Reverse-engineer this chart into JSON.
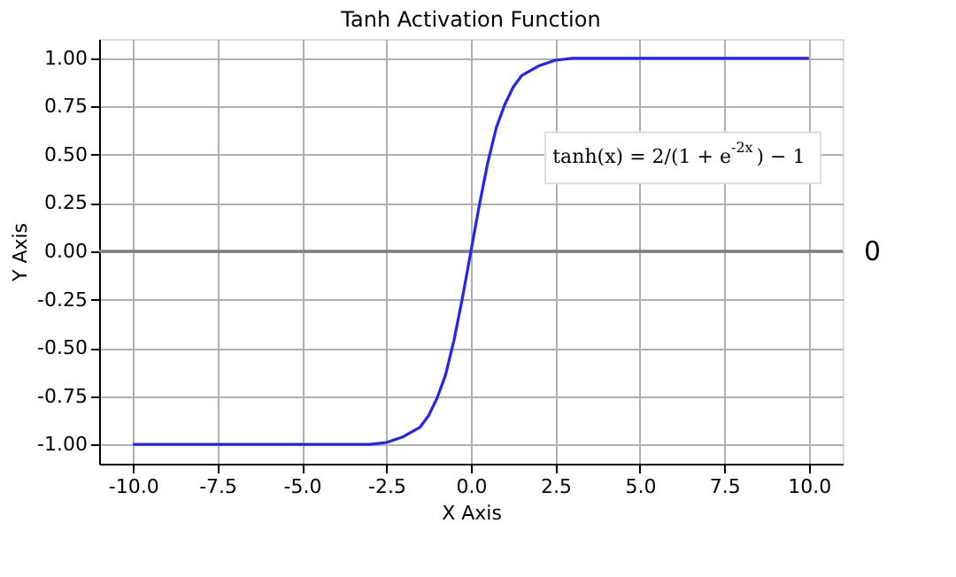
{
  "chart_data": {
    "type": "line",
    "title": "Tanh Activation Function",
    "xlabel": "X Axis",
    "ylabel": "Y Axis",
    "x": [
      -10,
      -6,
      -4,
      -3,
      -2.5,
      -2,
      -1.5,
      -1.25,
      -1,
      -0.75,
      -0.5,
      -0.25,
      0,
      0.25,
      0.5,
      0.75,
      1,
      1.25,
      1.5,
      2,
      2.5,
      3,
      4,
      6,
      10
    ],
    "series": [
      {
        "color": "#2424f0",
        "values": [
          -1.0,
          -1.0,
          -1.0,
          -1.0,
          -0.99,
          -0.96,
          -0.91,
          -0.85,
          -0.76,
          -0.64,
          -0.46,
          -0.24,
          0.0,
          0.24,
          0.46,
          0.64,
          0.76,
          0.85,
          0.91,
          0.96,
          0.99,
          1.0,
          1.0,
          1.0,
          1.0
        ]
      }
    ],
    "xlim": [
      -11,
      11
    ],
    "ylim": [
      -1.1,
      1.1
    ],
    "xticks": [
      {
        "value": -10,
        "label": "-10.0"
      },
      {
        "value": -7.5,
        "label": "-7.5"
      },
      {
        "value": -5,
        "label": "-5.0"
      },
      {
        "value": -2.5,
        "label": "-2.5"
      },
      {
        "value": 0,
        "label": "0.0"
      },
      {
        "value": 2.5,
        "label": "2.5"
      },
      {
        "value": 5,
        "label": "5.0"
      },
      {
        "value": 7.5,
        "label": "7.5"
      },
      {
        "value": 10,
        "label": "10.0"
      }
    ],
    "yticks": [
      {
        "value": -1,
        "label": "-1.00"
      },
      {
        "value": -0.75,
        "label": "-0.75"
      },
      {
        "value": -0.5,
        "label": "-0.50"
      },
      {
        "value": -0.25,
        "label": "-0.25"
      },
      {
        "value": 0,
        "label": "0.00"
      },
      {
        "value": 0.25,
        "label": "0.25"
      },
      {
        "value": 0.5,
        "label": "0.50"
      },
      {
        "value": 0.75,
        "label": "0.75"
      },
      {
        "value": 1,
        "label": "1.00"
      }
    ],
    "ref_lines": [
      {
        "axis": "y",
        "value": 0,
        "label": "0",
        "color": "#808080"
      }
    ],
    "annotations": [
      "tanh(x) = 2/(1 + e$^{-2x}$) − 1"
    ],
    "grid": true,
    "line_style": "solid",
    "marker": "none"
  }
}
